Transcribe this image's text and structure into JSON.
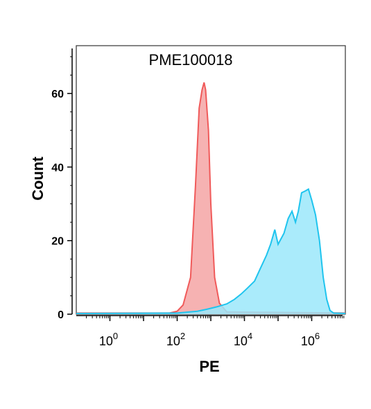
{
  "chart_data": {
    "type": "area",
    "title": "PME100018",
    "xlabel": "PE",
    "ylabel": "Count",
    "x_scale": "log10",
    "xlim": [
      0.1,
      10000000
    ],
    "ylim": [
      0,
      73
    ],
    "x_ticks": [
      {
        "value": 1,
        "base": "10",
        "exp": "0"
      },
      {
        "value": 100,
        "base": "10",
        "exp": "2"
      },
      {
        "value": 10000,
        "base": "10",
        "exp": "4"
      },
      {
        "value": 1000000,
        "base": "10",
        "exp": "6"
      }
    ],
    "y_ticks": [
      {
        "value": 0,
        "label": "0"
      },
      {
        "value": 20,
        "label": "20"
      },
      {
        "value": 40,
        "label": "40"
      },
      {
        "value": 60,
        "label": "60"
      }
    ],
    "grid": false,
    "legend": "none",
    "series": [
      {
        "fill": "#f4a4a4",
        "stroke": "#f05a5a",
        "points": [
          [
            0.1,
            0.3
          ],
          [
            10,
            0.3
          ],
          [
            60,
            0.3
          ],
          [
            100,
            0.8
          ],
          [
            150,
            2.5
          ],
          [
            250,
            10
          ],
          [
            350,
            35
          ],
          [
            450,
            56
          ],
          [
            550,
            61
          ],
          [
            630,
            63
          ],
          [
            700,
            61
          ],
          [
            850,
            50
          ],
          [
            1000,
            30
          ],
          [
            1300,
            10
          ],
          [
            1800,
            3
          ],
          [
            3000,
            0.6
          ],
          [
            10000000,
            0.3
          ]
        ]
      },
      {
        "fill": "#9be8fa",
        "stroke": "#1fc4ee",
        "points": [
          [
            0.1,
            0.2
          ],
          [
            100,
            0.3
          ],
          [
            400,
            0.8
          ],
          [
            800,
            1.4
          ],
          [
            1500,
            2
          ],
          [
            3000,
            2.8
          ],
          [
            5000,
            4
          ],
          [
            8000,
            5.5
          ],
          [
            12000,
            7
          ],
          [
            20000,
            9
          ],
          [
            30000,
            12.5
          ],
          [
            45000,
            16
          ],
          [
            60000,
            19
          ],
          [
            80000,
            23
          ],
          [
            100000,
            19
          ],
          [
            150000,
            22
          ],
          [
            200000,
            26
          ],
          [
            260000,
            28
          ],
          [
            330000,
            25
          ],
          [
            400000,
            28
          ],
          [
            500000,
            33
          ],
          [
            650000,
            33.5
          ],
          [
            800000,
            34
          ],
          [
            1000000,
            31
          ],
          [
            1300000,
            27
          ],
          [
            1700000,
            20
          ],
          [
            2200000,
            10
          ],
          [
            2800000,
            4
          ],
          [
            3500000,
            1
          ],
          [
            4500000,
            0.3
          ],
          [
            10000000,
            0.2
          ]
        ]
      }
    ]
  },
  "colors": {
    "axis": "#000000",
    "frame": "#333333"
  }
}
